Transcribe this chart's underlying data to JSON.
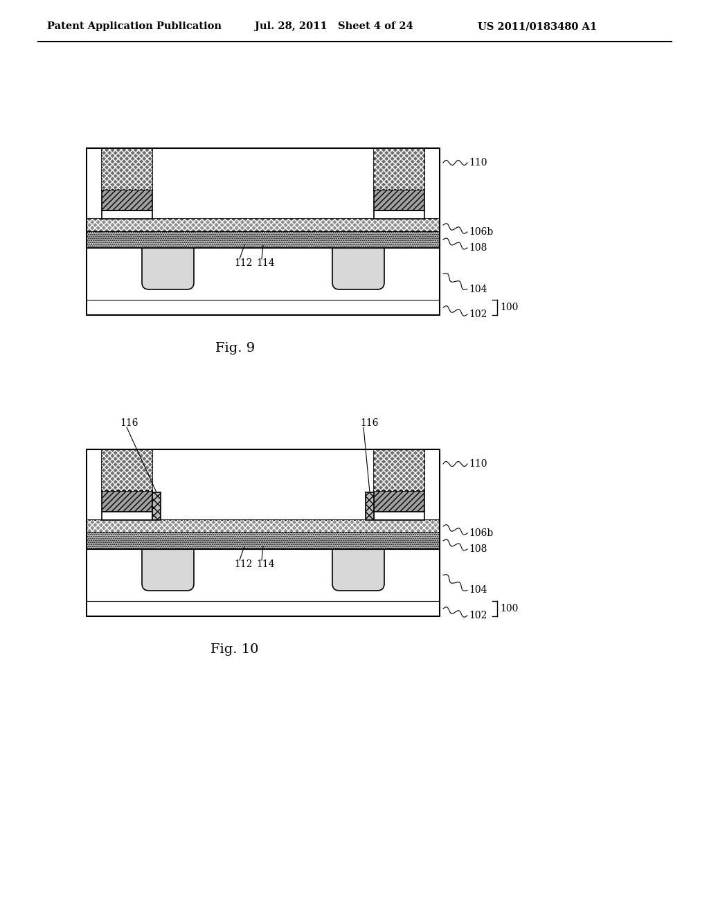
{
  "header_left": "Patent Application Publication",
  "header_mid": "Jul. 28, 2011   Sheet 4 of 24",
  "header_right": "US 2011/0183480 A1",
  "fig9_label": "Fig. 9",
  "fig10_label": "Fig. 10",
  "bg_color": "#ffffff",
  "color_white": "#ffffff",
  "color_black": "#000000",
  "color_dark_gray": "#555555",
  "color_mid_gray": "#888888",
  "color_light_gray": "#cccccc",
  "color_substrate": "#f0f0f0",
  "color_sti": "#d8d8d8",
  "color_channel": "#c8c8c8",
  "color_106b": "#909090",
  "color_gate_diag": "#a0a0a0",
  "color_gate_dark": "#707070"
}
